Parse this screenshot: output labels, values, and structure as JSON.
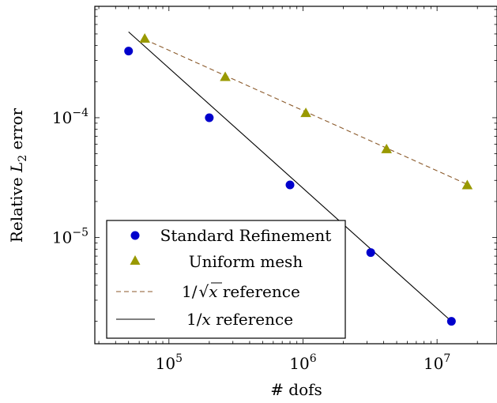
{
  "chart_data": {
    "type": "scatter",
    "xscale": "log",
    "yscale": "log",
    "xlim": [
      28000,
      28000000
    ],
    "ylim": [
      1.3e-06,
      0.00085
    ],
    "xlabel": "# dofs",
    "ylabel": "Relative L2 error",
    "ylabel_parts": {
      "prefix": "Relative ",
      "var": "L",
      "sub": "2",
      "suffix": " error"
    },
    "x_ticks": [
      {
        "value": 100000,
        "base": "10",
        "exp": "5"
      },
      {
        "value": 1000000,
        "base": "10",
        "exp": "6"
      },
      {
        "value": 10000000,
        "base": "10",
        "exp": "7"
      }
    ],
    "y_ticks": [
      {
        "value": 1e-05,
        "base": "10",
        "exp": "−5"
      },
      {
        "value": 0.0001,
        "base": "10",
        "exp": "−4"
      }
    ],
    "legend_position": "bottom-left",
    "series": [
      {
        "name": "Standard Refinement",
        "kind": "scatter",
        "marker": "circle",
        "color": "#0000cc",
        "points": [
          [
            50000,
            0.00036
          ],
          [
            200000,
            0.0001
          ],
          [
            800000,
            2.75e-05
          ],
          [
            3200000,
            7.5e-06
          ],
          [
            12800000,
            2e-06
          ]
        ]
      },
      {
        "name": "Uniform mesh",
        "kind": "scatter",
        "marker": "triangle",
        "color": "#999900",
        "points": [
          [
            66000,
            0.00046
          ],
          [
            263000,
            0.00022
          ],
          [
            1050000,
            0.00011
          ],
          [
            4200000,
            5.5e-05
          ],
          [
            16800000,
            2.75e-05
          ]
        ]
      },
      {
        "name": "1/√x reference",
        "legend_parts": {
          "prefix": "1/",
          "radicand": "x",
          "suffix": " reference"
        },
        "kind": "line",
        "dash": true,
        "color": "#8b5a2b",
        "points": [
          [
            66000,
            0.00045
          ],
          [
            16800000,
            2.78e-05
          ]
        ]
      },
      {
        "name": "1/x reference",
        "legend_parts": {
          "prefix": "1/",
          "var": "x",
          "suffix": " reference"
        },
        "kind": "line",
        "dash": false,
        "color": "#000000",
        "points": [
          [
            50000,
            0.00052
          ],
          [
            12800000,
            2e-06
          ]
        ]
      }
    ]
  }
}
